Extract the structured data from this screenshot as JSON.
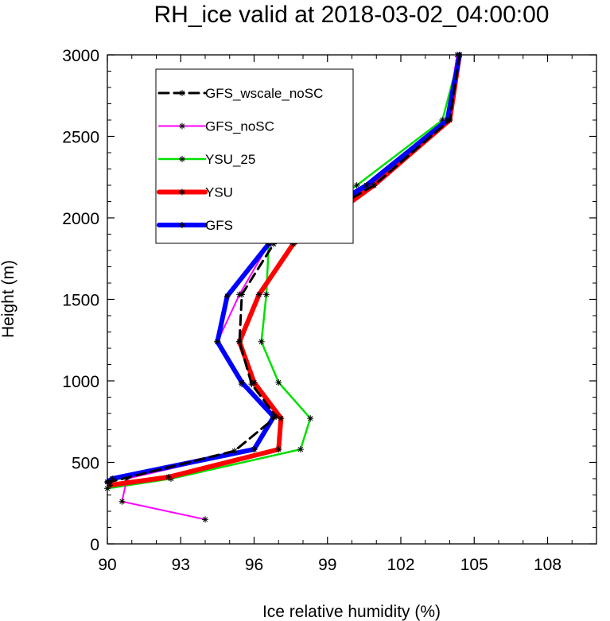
{
  "chart_data": {
    "type": "line",
    "title": "RH_ice valid at 2018-03-02_04:00:00",
    "xlabel": "Ice relative humidity (%)",
    "ylabel": "Height (m)",
    "xlim": [
      90,
      110
    ],
    "ylim": [
      0,
      3000
    ],
    "xticks": [
      "90",
      "93",
      "96",
      "99",
      "102",
      "105",
      "108"
    ],
    "yticks": [
      "0",
      "500",
      "1000",
      "1500",
      "2000",
      "2500",
      "3000"
    ],
    "grid": false,
    "legend_position": "top-left",
    "series": [
      {
        "name": "GFS_wscale_noSC",
        "color": "#000000",
        "dashed": true,
        "width": 3,
        "x": [
          104.4,
          104.0,
          100.9,
          96.8,
          95.5,
          95.4,
          95.9,
          96.9,
          95.2,
          90.1
        ],
        "y": [
          3000,
          2600,
          2200,
          1840,
          1530,
          1240,
          980,
          780,
          570,
          380
        ]
      },
      {
        "name": "GFS_noSC",
        "color": "#ff00ff",
        "dashed": false,
        "width": 2,
        "x": [
          104.3,
          103.9,
          100.8,
          96.6,
          95.4,
          94.5,
          95.5,
          96.8,
          96.0,
          90.8,
          90.6,
          94.0
        ],
        "y": [
          3000,
          2600,
          2200,
          1840,
          1530,
          1240,
          980,
          780,
          580,
          400,
          260,
          150
        ]
      },
      {
        "name": "YSU_25",
        "color": "#00e000",
        "dashed": false,
        "width": 2.5,
        "x": [
          104.4,
          103.7,
          100.2,
          96.6,
          96.5,
          96.3,
          97.0,
          98.3,
          97.9,
          92.6,
          90.0
        ],
        "y": [
          3000,
          2600,
          2200,
          1840,
          1530,
          1240,
          990,
          770,
          580,
          400,
          340
        ]
      },
      {
        "name": "YSU",
        "color": "#ff0000",
        "dashed": false,
        "width": 6,
        "x": [
          104.4,
          104.0,
          100.9,
          97.6,
          96.2,
          95.4,
          96.0,
          97.1,
          97.0,
          92.5,
          90.1
        ],
        "y": [
          3000,
          2600,
          2200,
          1840,
          1530,
          1240,
          990,
          770,
          580,
          410,
          360
        ]
      },
      {
        "name": "GFS",
        "color": "#0000ff",
        "dashed": false,
        "width": 6,
        "x": [
          104.4,
          103.9,
          100.6,
          96.6,
          94.9,
          94.5,
          95.5,
          96.8,
          96.0,
          90.2,
          90.0
        ],
        "y": [
          3000,
          2600,
          2200,
          1840,
          1520,
          1240,
          990,
          780,
          580,
          400,
          380
        ]
      }
    ]
  }
}
